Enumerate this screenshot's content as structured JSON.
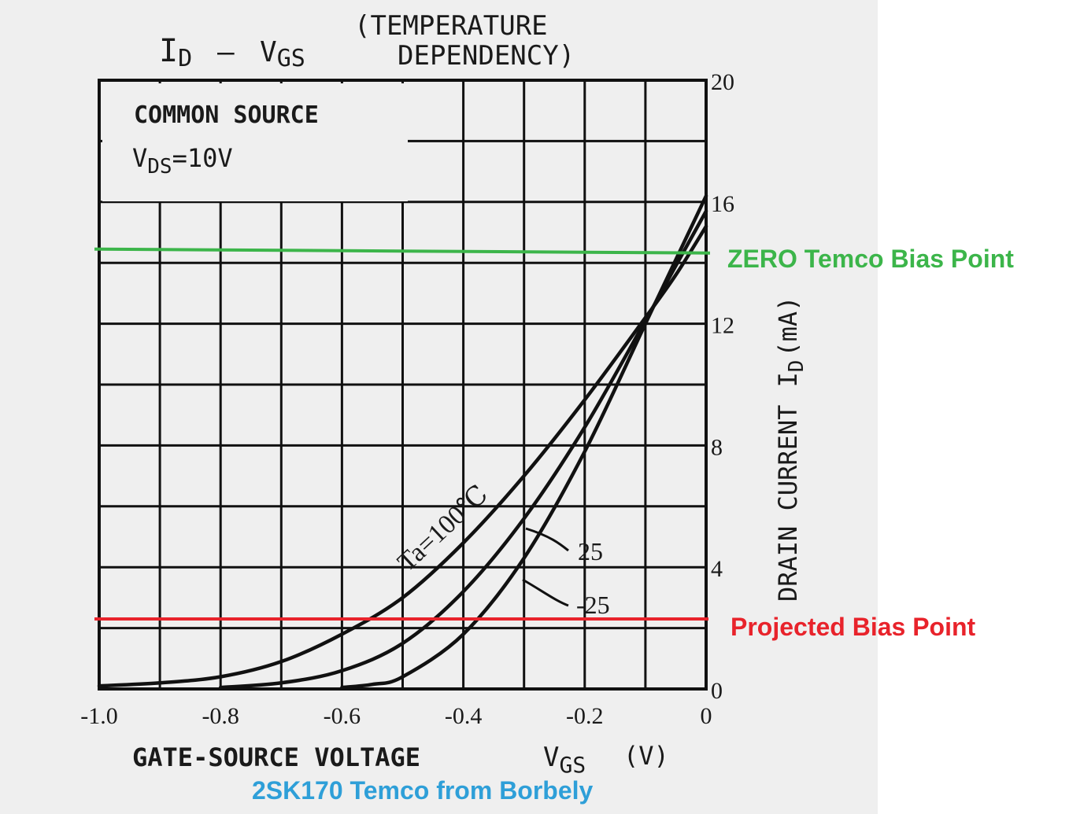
{
  "chart_data": {
    "type": "line",
    "title": {
      "main": "I",
      "main_sub": "D",
      "dash": "—",
      "v": "V",
      "v_sub": "GS",
      "paren_line1": "(TEMPERATURE",
      "paren_line2": "DEPENDENCY)"
    },
    "conditions": {
      "line1": "COMMON SOURCE",
      "line2_main": "V",
      "line2_sub": "DS",
      "line2_rest": "=10V"
    },
    "xlabel": {
      "text": "GATE-SOURCE VOLTAGE",
      "symbol": "V",
      "symbol_sub": "GS",
      "unit": "(V)"
    },
    "ylabel": {
      "text": "DRAIN CURRENT",
      "symbol": "I",
      "symbol_sub": "D",
      "unit": "(mA)"
    },
    "xlim": [
      -1.0,
      0
    ],
    "ylim": [
      0,
      20
    ],
    "x_ticks": [
      "-1.0",
      "-0.8",
      "-0.6",
      "-0.4",
      "-0.2",
      "0"
    ],
    "y_ticks": [
      "0",
      "4",
      "8",
      "12",
      "16",
      "20"
    ],
    "grid": true,
    "series": [
      {
        "name": "Ta=100℃",
        "x": [
          -1.0,
          -0.9,
          -0.8,
          -0.7,
          -0.6,
          -0.5,
          -0.4,
          -0.3,
          -0.2,
          -0.1,
          -0.05,
          0
        ],
        "y": [
          0.1,
          0.2,
          0.4,
          0.9,
          1.8,
          3.0,
          4.8,
          7.0,
          9.5,
          12.2,
          13.6,
          15.2
        ]
      },
      {
        "name": "25",
        "x": [
          -0.8,
          -0.7,
          -0.6,
          -0.5,
          -0.4,
          -0.3,
          -0.2,
          -0.1,
          -0.05,
          0
        ],
        "y": [
          0.05,
          0.2,
          0.6,
          1.5,
          3.2,
          5.6,
          8.6,
          12.1,
          13.9,
          15.7
        ]
      },
      {
        "name": "-25",
        "x": [
          -0.6,
          -0.55,
          -0.5,
          -0.4,
          -0.3,
          -0.2,
          -0.1,
          -0.05,
          0
        ],
        "y": [
          0.05,
          0.15,
          0.4,
          1.8,
          4.3,
          7.8,
          12.0,
          14.1,
          16.2
        ]
      }
    ],
    "annotations": {
      "zero_bias": {
        "label": "ZERO Temco Bias Point",
        "y": 14.4,
        "color": "#3cb54a"
      },
      "projected_bias": {
        "label": "Projected Bias Point",
        "y": 2.3,
        "color": "#e8232b"
      },
      "caption": {
        "label": "2SK170 Temco from Borbely",
        "color": "#2e9fd8"
      }
    }
  }
}
